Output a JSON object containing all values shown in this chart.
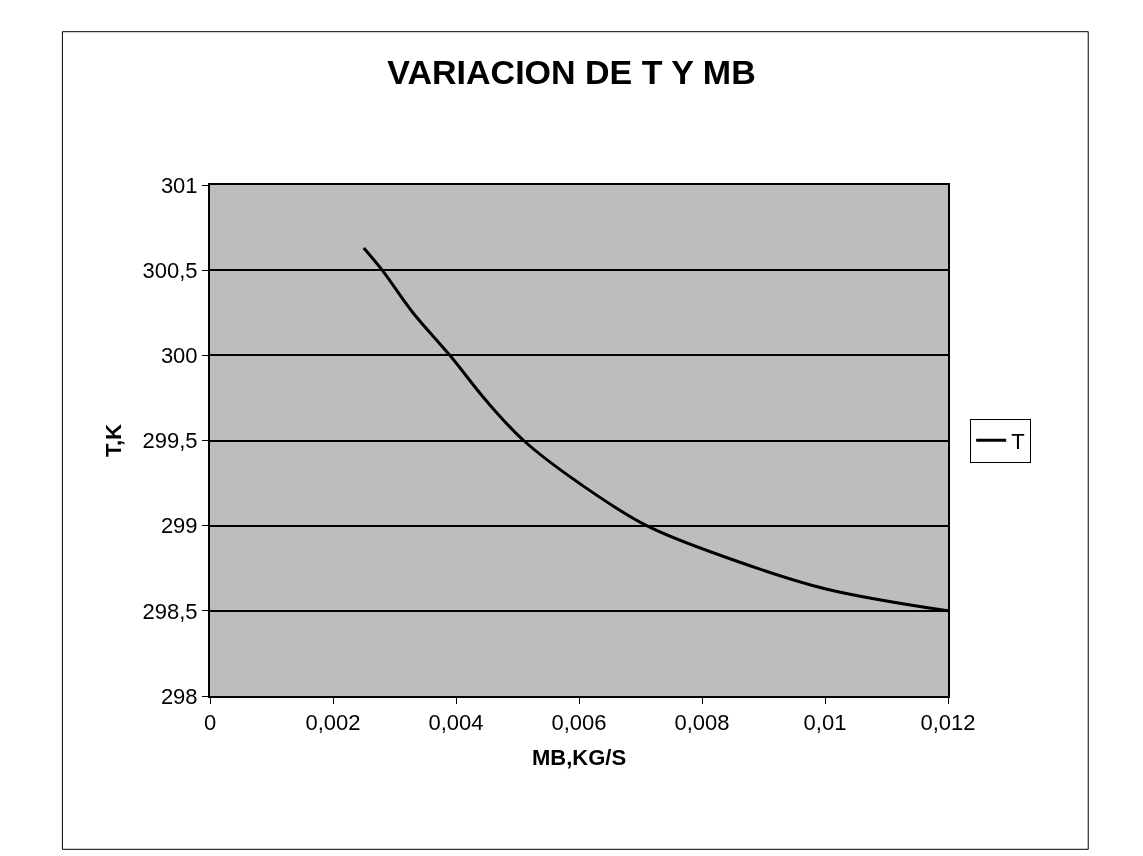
{
  "chart_data": {
    "type": "line",
    "title": "VARIACION DE T Y MB",
    "xlabel": "MB,KG/S",
    "ylabel": "T,K",
    "series": [
      {
        "name": "T",
        "color": "#000000",
        "x": [
          0.0025,
          0.0028,
          0.0033,
          0.0039,
          0.0045,
          0.0051,
          0.006,
          0.0071,
          0.0085,
          0.01,
          0.012
        ],
        "values": [
          300.63,
          300.5,
          300.25,
          300.0,
          299.73,
          299.5,
          299.25,
          299.0,
          298.8,
          298.63,
          298.5
        ]
      }
    ],
    "xlim": [
      0,
      0.012
    ],
    "xticks": [
      {
        "value": 0,
        "label": "0"
      },
      {
        "value": 0.002,
        "label": "0,002"
      },
      {
        "value": 0.004,
        "label": "0,004"
      },
      {
        "value": 0.006,
        "label": "0,006"
      },
      {
        "value": 0.008,
        "label": "0,008"
      },
      {
        "value": 0.01,
        "label": "0,01"
      },
      {
        "value": 0.012,
        "label": "0,012"
      }
    ],
    "ylim": [
      298,
      301
    ],
    "yticks": [
      298,
      {
        "value": 298.5,
        "label": "298,5"
      },
      299,
      {
        "value": 299.5,
        "label": "299,5"
      },
      300,
      {
        "value": 300.5,
        "label": "300,5"
      },
      301
    ],
    "grid": "y",
    "legend": "right",
    "marker": "none",
    "line_style": "solid"
  }
}
